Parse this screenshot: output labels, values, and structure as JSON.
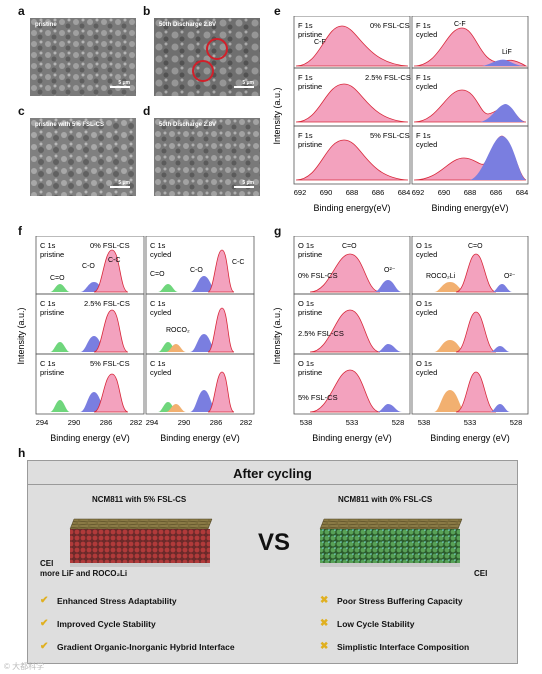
{
  "panels": {
    "a": {
      "label": "a",
      "caption": "pristine",
      "scale": "5 μm"
    },
    "b": {
      "label": "b",
      "caption": "50th Discharge 2.8V",
      "scale": "5 μm"
    },
    "c": {
      "label": "c",
      "caption": "pristine with 5% FSL-CS",
      "scale": "5 μm"
    },
    "d": {
      "label": "d",
      "caption": "50th Discharge 2.8V",
      "scale": "5 μm"
    }
  },
  "panel_e": {
    "label": "e",
    "ylabel": "Intensity (a.u.)",
    "xlabel": "Binding energy(eV)",
    "xticks": [
      "692",
      "690",
      "688",
      "686",
      "684"
    ],
    "rows": [
      {
        "left": {
          "t1": "F 1s",
          "t2": "pristine",
          "tag": "0% FSL-CS",
          "peak1": "C-F"
        },
        "right": {
          "t1": "F 1s",
          "t2": "cycled",
          "peak1": "C-F",
          "peak2": "LiF"
        }
      },
      {
        "left": {
          "t1": "F 1s",
          "t2": "pristine",
          "tag": "2.5% FSL-CS"
        },
        "right": {
          "t1": "F 1s",
          "t2": "cycled"
        }
      },
      {
        "left": {
          "t1": "F 1s",
          "t2": "pristine",
          "tag": "5% FSL-CS"
        },
        "right": {
          "t1": "F 1s",
          "t2": "cycled"
        }
      }
    ]
  },
  "panel_f": {
    "label": "f",
    "ylabel": "Intensity (a.u.)",
    "xlabel": "Binding energy (eV)",
    "xticks": [
      "294",
      "290",
      "286",
      "282"
    ],
    "rows": [
      {
        "left": {
          "t1": "C 1s",
          "t2": "pristine",
          "tag": "0% FSL-CS",
          "p1": "C=O",
          "p2": "C-O",
          "p3": "C-C"
        },
        "right": {
          "t1": "C 1s",
          "t2": "cycled",
          "p1": "C=O",
          "p2": "C-O",
          "p3": "C-C"
        }
      },
      {
        "left": {
          "t1": "C 1s",
          "t2": "pristine",
          "tag": "2.5% FSL-CS"
        },
        "right": {
          "t1": "C 1s",
          "t2": "cycled",
          "p1": "ROCO₂"
        }
      },
      {
        "left": {
          "t1": "C 1s",
          "t2": "pristine",
          "tag": "5% FSL-CS"
        },
        "right": {
          "t1": "C 1s",
          "t2": "cycled"
        }
      }
    ]
  },
  "panel_g": {
    "label": "g",
    "ylabel": "Intensity (a.u.)",
    "xlabel": "Binding energy (eV)",
    "xticks": [
      "538",
      "533",
      "528"
    ],
    "rows": [
      {
        "left": {
          "t1": "O 1s",
          "t2": "pristine",
          "tag": "0% FSL-CS",
          "p1": "C=O",
          "p2": "O²⁻"
        },
        "right": {
          "t1": "O 1s",
          "t2": "cycled",
          "p1": "C=O",
          "p2": "ROCO₂Li",
          "p3": "O²⁻"
        }
      },
      {
        "left": {
          "t1": "O 1s",
          "t2": "pristine",
          "tag": "2.5% FSL-CS"
        },
        "right": {
          "t1": "O 1s",
          "t2": "cycled"
        }
      },
      {
        "left": {
          "t1": "O 1s",
          "t2": "pristine",
          "tag": "5% FSL-CS"
        },
        "right": {
          "t1": "O 1s",
          "t2": "cycled"
        }
      }
    ]
  },
  "panel_h": {
    "label": "h",
    "title": "After cycling",
    "left_title": "NCM811 with 5% FSL-CS",
    "right_title": "NCM811 with 0% FSL-CS",
    "vs": "VS",
    "left_cei": "CEI",
    "left_cei_note": "more LiF and ROCO₂Li",
    "right_cei": "CEI",
    "pros": [
      "Enhanced Stress Adaptability",
      "Improved Cycle Stability",
      "Gradient Organic-Inorganic Hybrid Interface"
    ],
    "cons": [
      "Poor Stress Buffering Capacity",
      "Low Cycle Stability",
      "Simplistic Interface Composition"
    ]
  },
  "watermark": "© 大都科学",
  "colors": {
    "pink": "#f08fb0",
    "blue": "#6b6fd8",
    "green": "#5ccf6a",
    "orange": "#f0a060",
    "red_line": "#d8283a"
  }
}
